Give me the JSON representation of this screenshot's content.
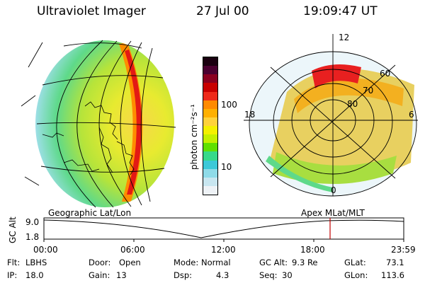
{
  "header": {
    "instrument": "Ultraviolet Imager",
    "date": "27 Jul 00",
    "time": "19:09:47 UT"
  },
  "colorbar": {
    "unit_label": "photon cm⁻²s⁻¹",
    "tick_labels": [
      "100",
      "10"
    ],
    "colors_top_to_bottom": [
      "#1a0010",
      "#4a0030",
      "#8a0020",
      "#c80000",
      "#ee2a1a",
      "#ff8a00",
      "#ffb000",
      "#ffd23a",
      "#f4f000",
      "#c4f000",
      "#5fe000",
      "#36d98a",
      "#3cc8d8",
      "#8fdbe8",
      "#c8e6f0",
      "#eef2f6"
    ]
  },
  "left_panel": {
    "caption": "Geographic Lat/Lon"
  },
  "right_panel": {
    "caption": "Apex MLat/MLT",
    "mlt_labels": [
      "12",
      "18",
      "6",
      "0"
    ],
    "lat_labels": [
      "60",
      "70",
      "80"
    ]
  },
  "altitude_plot": {
    "y_label": "GC Alt",
    "y_ticks": [
      "9.0",
      "1.8"
    ],
    "x_ticks": [
      "00:00",
      "06:00",
      "12:00",
      "18:00",
      "23:59"
    ],
    "marker_color": "#c00000"
  },
  "info": {
    "rows": [
      [
        {
          "label": "Flt:",
          "value": "LBHS"
        },
        {
          "label": "Door:",
          "value": "Open"
        },
        {
          "label": "Mode:",
          "value": "Normal"
        },
        {
          "label": "GC Alt:",
          "value": "9.3 Re"
        },
        {
          "label": "GLat:",
          "value": "73.1"
        }
      ],
      [
        {
          "label": "IP:",
          "value": "18.0"
        },
        {
          "label": "Gain:",
          "value": "13"
        },
        {
          "label": "Dsp:",
          "value": "4.3"
        },
        {
          "label": "Seq:",
          "value": "30"
        },
        {
          "label": "GLon:",
          "value": "113.6"
        }
      ]
    ]
  }
}
